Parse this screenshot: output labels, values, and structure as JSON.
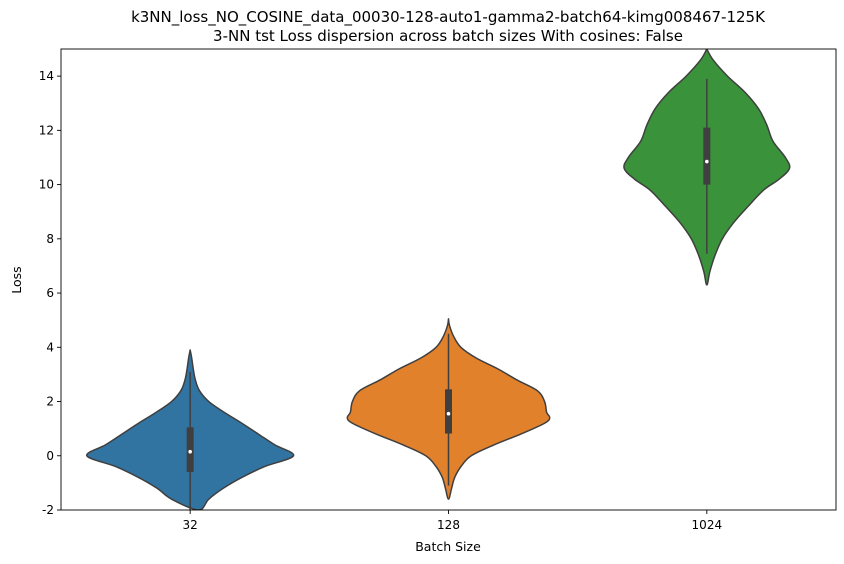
{
  "chart_data": {
    "type": "violin",
    "title": "k3NN_loss_NO_COSINE_data_00030-128-auto1-gamma2-batch64-kimg008467-125K",
    "subtitle": "3-NN tst Loss dispersion across batch sizes With cosines: False",
    "xlabel": "Batch Size",
    "ylabel": "Loss",
    "categories": [
      "32",
      "128",
      "1024"
    ],
    "ylim": [
      -2,
      15
    ],
    "yticks": [
      -2,
      0,
      2,
      4,
      6,
      8,
      10,
      12,
      14
    ],
    "grid": false,
    "legend": "none",
    "colors": [
      "#3274a1",
      "#e1812c",
      "#3a923a"
    ],
    "violins": [
      {
        "category": "32",
        "median": 0.15,
        "q1": -0.6,
        "q3": 1.05,
        "whisker_low": -2.0,
        "whisker_high": 3.1,
        "profile": [
          [
            3.9,
            0
          ],
          [
            3.6,
            0.015
          ],
          [
            3.2,
            0.03
          ],
          [
            2.8,
            0.05
          ],
          [
            2.4,
            0.09
          ],
          [
            2.0,
            0.18
          ],
          [
            1.6,
            0.33
          ],
          [
            1.2,
            0.5
          ],
          [
            0.8,
            0.66
          ],
          [
            0.4,
            0.82
          ],
          [
            0.0,
            1.0
          ],
          [
            -0.4,
            0.72
          ],
          [
            -0.8,
            0.5
          ],
          [
            -1.2,
            0.32
          ],
          [
            -1.6,
            0.18
          ],
          [
            -2.0,
            0.08
          ]
        ]
      },
      {
        "category": "128",
        "median": 1.55,
        "q1": 0.82,
        "q3": 2.45,
        "whisker_low": -1.1,
        "whisker_high": 4.5,
        "profile": [
          [
            5.05,
            0
          ],
          [
            4.8,
            0.01
          ],
          [
            4.4,
            0.05
          ],
          [
            4.0,
            0.12
          ],
          [
            3.6,
            0.27
          ],
          [
            3.2,
            0.48
          ],
          [
            2.8,
            0.66
          ],
          [
            2.4,
            0.86
          ],
          [
            2.0,
            0.93
          ],
          [
            1.6,
            0.95
          ],
          [
            1.4,
            0.98
          ],
          [
            1.2,
            0.93
          ],
          [
            0.8,
            0.7
          ],
          [
            0.4,
            0.44
          ],
          [
            0.0,
            0.22
          ],
          [
            -0.4,
            0.12
          ],
          [
            -0.8,
            0.06
          ],
          [
            -1.2,
            0.03
          ],
          [
            -1.6,
            0
          ]
        ]
      },
      {
        "category": "1024",
        "median": 10.85,
        "q1": 10.0,
        "q3": 12.1,
        "whisker_low": 7.45,
        "whisker_high": 13.9,
        "profile": [
          [
            15.0,
            0
          ],
          [
            14.6,
            0.06
          ],
          [
            14.0,
            0.2
          ],
          [
            13.4,
            0.37
          ],
          [
            12.8,
            0.5
          ],
          [
            12.2,
            0.58
          ],
          [
            11.6,
            0.64
          ],
          [
            11.0,
            0.76
          ],
          [
            10.6,
            0.8
          ],
          [
            10.2,
            0.7
          ],
          [
            9.8,
            0.55
          ],
          [
            9.2,
            0.4
          ],
          [
            8.6,
            0.26
          ],
          [
            8.0,
            0.15
          ],
          [
            7.4,
            0.08
          ],
          [
            6.8,
            0.03
          ],
          [
            6.3,
            0
          ]
        ]
      }
    ]
  }
}
